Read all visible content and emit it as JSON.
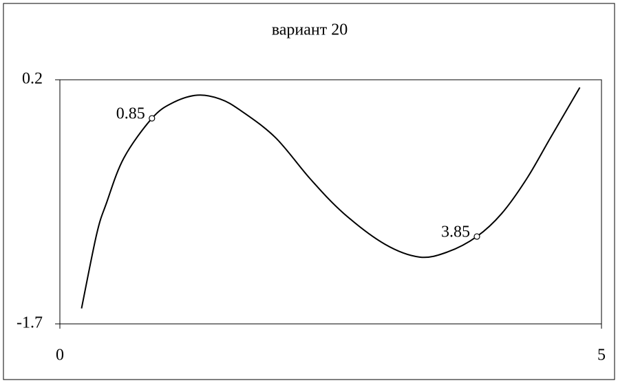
{
  "chart_data": {
    "type": "line",
    "title": "вариант 20",
    "xlim": [
      0,
      5
    ],
    "xticks": [
      0,
      5
    ],
    "ylim": [
      -1.7,
      0.2
    ],
    "yticks": [
      0.2,
      -1.7
    ],
    "grid": false,
    "series": [
      {
        "color": "#000000",
        "x": [
          0.2,
          0.34,
          0.43,
          0.59,
          0.85,
          1.04,
          1.27,
          1.48,
          1.67,
          1.99,
          2.31,
          2.62,
          3.0,
          3.32,
          3.58,
          3.85,
          4.08,
          4.31,
          4.53,
          4.8
        ],
        "values": [
          -1.58,
          -1.0,
          -0.76,
          -0.41,
          -0.1,
          0.02,
          0.08,
          0.05,
          -0.04,
          -0.25,
          -0.57,
          -0.84,
          -1.08,
          -1.18,
          -1.14,
          -1.02,
          -0.84,
          -0.57,
          -0.25,
          0.14
        ]
      }
    ],
    "points": {
      "x": [
        0.85,
        3.85
      ],
      "values": [
        -0.1,
        -1.02
      ]
    }
  }
}
